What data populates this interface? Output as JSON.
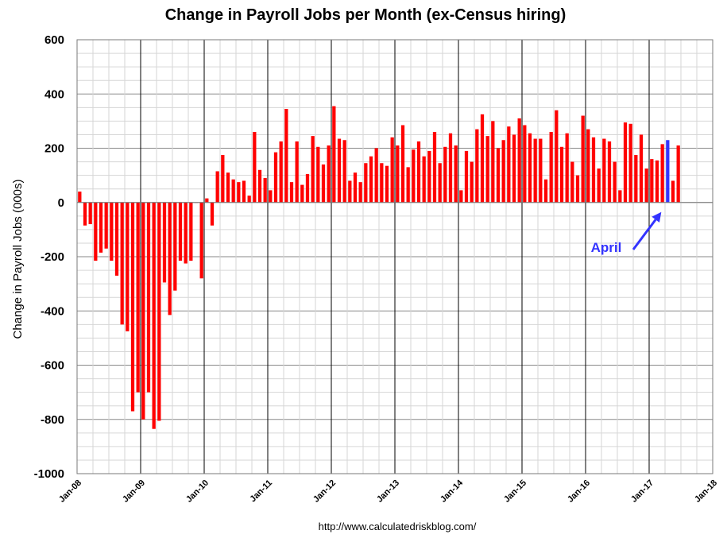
{
  "chart_data": {
    "type": "bar",
    "title": "Change in Payroll Jobs per Month (ex-Census hiring)",
    "ylabel": "Change in Payroll Jobs (000s)",
    "xlabel": "",
    "ylim": [
      -1000,
      600
    ],
    "yticks": [
      "600",
      "400",
      "200",
      "0",
      "-200",
      "-400",
      "-600",
      "-800",
      "-1000"
    ],
    "ytick_values": [
      600,
      400,
      200,
      0,
      -200,
      -400,
      -600,
      -800,
      -1000
    ],
    "xticks": [
      "Jan-08",
      "Jan-09",
      "Jan-10",
      "Jan-11",
      "Jan-12",
      "Jan-13",
      "Jan-14",
      "Jan-15",
      "Jan-16",
      "Jan-17",
      "Jan-18"
    ],
    "start_month": "Jan-08",
    "bar_color": "#ff0000",
    "highlight_color": "#3333ff",
    "highlight_index": 111,
    "grid": true,
    "annotation": {
      "text": "April",
      "color": "#3333ff"
    },
    "source": "http://www.calculatedriskblog.com/",
    "values": [
      40,
      -85,
      -80,
      -215,
      -185,
      -170,
      -215,
      -270,
      -450,
      -475,
      -770,
      -700,
      -800,
      -700,
      -835,
      -805,
      -295,
      -415,
      -325,
      -215,
      -225,
      -215,
      0,
      -280,
      15,
      -85,
      115,
      175,
      110,
      85,
      75,
      80,
      25,
      260,
      120,
      90,
      45,
      185,
      225,
      345,
      75,
      225,
      65,
      105,
      245,
      205,
      140,
      210,
      355,
      235,
      230,
      80,
      110,
      75,
      145,
      170,
      200,
      145,
      135,
      240,
      210,
      285,
      130,
      195,
      225,
      170,
      190,
      260,
      145,
      205,
      255,
      210,
      45,
      190,
      150,
      270,
      325,
      245,
      300,
      200,
      230,
      280,
      250,
      310,
      285,
      255,
      235,
      235,
      85,
      260,
      340,
      205,
      255,
      150,
      100,
      320,
      270,
      240,
      125,
      235,
      225,
      150,
      45,
      295,
      290,
      175,
      250,
      125,
      160,
      155,
      215,
      230,
      80,
      210
    ]
  }
}
